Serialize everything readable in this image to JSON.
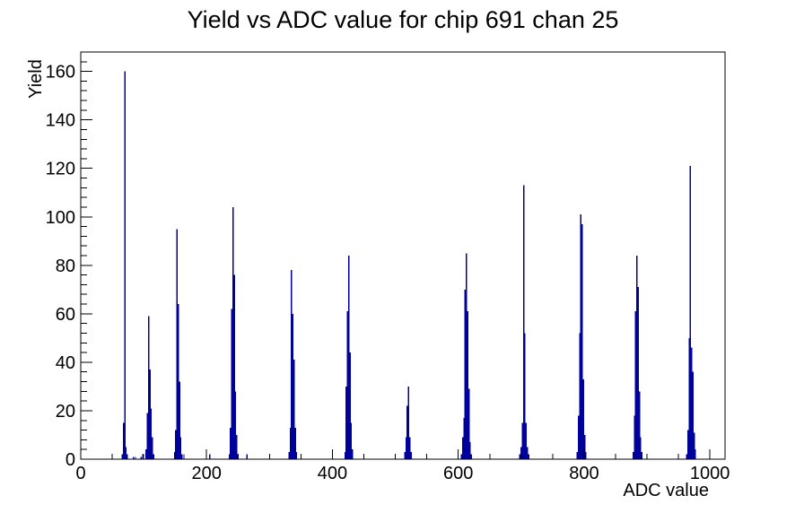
{
  "window": {
    "background": "#ffffff"
  },
  "chart_data": {
    "type": "bar",
    "title": "Yield vs ADC value for chip 691 chan 25",
    "xlabel": "ADC value",
    "ylabel": "Yield",
    "xlim": [
      0,
      1024
    ],
    "ylim": [
      0,
      168
    ],
    "grid": false,
    "legend": "none",
    "line_color": "#00009a",
    "axis_color": "#000000",
    "bin_width_adc": 2,
    "x_major_ticks": [
      0,
      200,
      400,
      600,
      800,
      1000
    ],
    "x_major_labels": [
      "0",
      "200",
      "400",
      "600",
      "800",
      "1000"
    ],
    "x_minor_step": 50,
    "y_major_ticks": [
      0,
      20,
      40,
      60,
      80,
      100,
      120,
      140,
      160
    ],
    "y_major_labels": [
      "0",
      "20",
      "40",
      "60",
      "80",
      "100",
      "120",
      "140",
      "160"
    ],
    "y_minor_step": 4,
    "bars": [
      [
        66,
        2
      ],
      [
        68,
        15
      ],
      [
        70,
        160
      ],
      [
        72,
        5
      ],
      [
        74,
        2
      ],
      [
        84,
        1
      ],
      [
        87,
        1
      ],
      [
        96,
        1
      ],
      [
        99,
        2
      ],
      [
        104,
        4
      ],
      [
        106,
        19
      ],
      [
        108,
        59
      ],
      [
        110,
        37
      ],
      [
        112,
        21
      ],
      [
        114,
        9
      ],
      [
        116,
        2
      ],
      [
        149,
        3
      ],
      [
        151,
        12
      ],
      [
        153,
        95
      ],
      [
        155,
        64
      ],
      [
        157,
        32
      ],
      [
        159,
        9
      ],
      [
        161,
        2
      ],
      [
        164,
        2
      ],
      [
        205,
        2
      ],
      [
        236,
        2
      ],
      [
        238,
        13
      ],
      [
        240,
        62
      ],
      [
        242,
        104
      ],
      [
        244,
        76
      ],
      [
        246,
        28
      ],
      [
        248,
        10
      ],
      [
        250,
        2
      ],
      [
        264,
        2
      ],
      [
        331,
        3
      ],
      [
        333,
        13
      ],
      [
        335,
        78
      ],
      [
        337,
        60
      ],
      [
        339,
        41
      ],
      [
        341,
        13
      ],
      [
        343,
        3
      ],
      [
        420,
        3
      ],
      [
        422,
        30
      ],
      [
        424,
        61
      ],
      [
        426,
        84
      ],
      [
        428,
        44
      ],
      [
        430,
        15
      ],
      [
        432,
        4
      ],
      [
        515,
        3
      ],
      [
        517,
        9
      ],
      [
        519,
        22
      ],
      [
        521,
        30
      ],
      [
        523,
        9
      ],
      [
        525,
        3
      ],
      [
        605,
        2
      ],
      [
        607,
        9
      ],
      [
        609,
        17
      ],
      [
        611,
        70
      ],
      [
        613,
        85
      ],
      [
        615,
        61
      ],
      [
        617,
        29
      ],
      [
        619,
        7
      ],
      [
        621,
        2
      ],
      [
        698,
        2
      ],
      [
        700,
        5
      ],
      [
        702,
        15
      ],
      [
        704,
        113
      ],
      [
        706,
        52
      ],
      [
        708,
        15
      ],
      [
        710,
        5
      ],
      [
        712,
        2
      ],
      [
        789,
        3
      ],
      [
        791,
        18
      ],
      [
        793,
        52
      ],
      [
        795,
        101
      ],
      [
        797,
        97
      ],
      [
        799,
        33
      ],
      [
        801,
        10
      ],
      [
        803,
        3
      ],
      [
        878,
        3
      ],
      [
        880,
        18
      ],
      [
        882,
        61
      ],
      [
        884,
        84
      ],
      [
        886,
        71
      ],
      [
        888,
        28
      ],
      [
        890,
        9
      ],
      [
        892,
        3
      ],
      [
        963,
        2
      ],
      [
        965,
        12
      ],
      [
        967,
        50
      ],
      [
        969,
        121
      ],
      [
        971,
        46
      ],
      [
        973,
        36
      ],
      [
        975,
        11
      ],
      [
        977,
        4
      ]
    ]
  }
}
